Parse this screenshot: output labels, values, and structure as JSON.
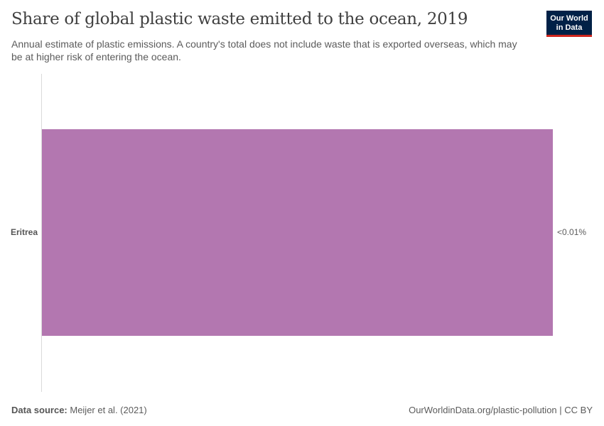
{
  "header": {
    "title": "Share of global plastic waste emitted to the ocean, 2019",
    "subtitle": "Annual estimate of plastic emissions. A country's total does not include waste that is exported overseas, which may be at higher risk of entering the ocean.",
    "logo_line1": "Our World",
    "logo_line2": "in Data"
  },
  "footer": {
    "source_label": "Data source:",
    "source_value": " Meijer et al. (2021)",
    "credit": "OurWorldinData.org/plastic-pollution | CC BY"
  },
  "colors": {
    "bar": "#b377b0",
    "logo_bg": "#002147",
    "logo_accent": "#ce261e"
  },
  "chart_data": {
    "type": "bar",
    "orientation": "horizontal",
    "title": "Share of global plastic waste emitted to the ocean, 2019",
    "subtitle": "Annual estimate of plastic emissions. A country's total does not include waste that is exported overseas, which may be at higher risk of entering the ocean.",
    "categories": [
      "Eritrea"
    ],
    "values": [
      0.005
    ],
    "value_labels": [
      "<0.01%"
    ],
    "xlabel": "",
    "ylabel": "",
    "unit": "%",
    "grid": false,
    "legend": null
  }
}
